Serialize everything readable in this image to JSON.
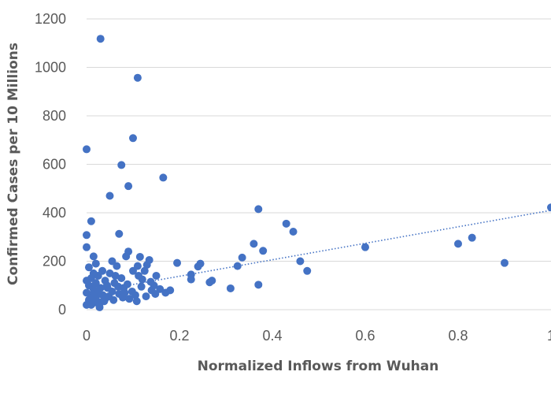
{
  "chart_data": {
    "type": "scatter",
    "title": "",
    "xlabel": "Normalized Inflows from Wuhan",
    "ylabel": "Confirmed Cases per 10 Millions",
    "xlim": [
      0,
      1
    ],
    "ylim": [
      0,
      1200
    ],
    "x_ticks": [
      "0",
      "0.2",
      "0.4",
      "0.6",
      "0.8",
      "1"
    ],
    "y_ticks": [
      "0",
      "200",
      "400",
      "600",
      "800",
      "1000",
      "1200"
    ],
    "grid": "horizontal",
    "legend": "none",
    "trendline": {
      "style": "dotted",
      "type": "linear",
      "x": [
        0,
        1
      ],
      "y": [
        70,
        410
      ]
    },
    "colors": {
      "points": "#4472c4",
      "grid": "#d9d9d9",
      "text": "#595959"
    },
    "series": [
      {
        "points": [
          [
            0.03,
            1118
          ],
          [
            0.11,
            957
          ],
          [
            0.1,
            708
          ],
          [
            0.0,
            662
          ],
          [
            0.075,
            597
          ],
          [
            0.165,
            545
          ],
          [
            0.09,
            510
          ],
          [
            0.05,
            470
          ],
          [
            0.01,
            365
          ],
          [
            0.07,
            313
          ],
          [
            0.0,
            308
          ],
          [
            0.0,
            258
          ],
          [
            0.37,
            415
          ],
          [
            0.43,
            355
          ],
          [
            0.445,
            322
          ],
          [
            0.36,
            272
          ],
          [
            0.38,
            243
          ],
          [
            0.335,
            215
          ],
          [
            0.325,
            180
          ],
          [
            0.46,
            200
          ],
          [
            0.475,
            160
          ],
          [
            0.37,
            103
          ],
          [
            0.31,
            88
          ],
          [
            0.265,
            113
          ],
          [
            0.27,
            120
          ],
          [
            0.245,
            190
          ],
          [
            0.24,
            178
          ],
          [
            0.225,
            145
          ],
          [
            0.225,
            125
          ],
          [
            0.195,
            193
          ],
          [
            0.18,
            80
          ],
          [
            0.17,
            70
          ],
          [
            0.15,
            140
          ],
          [
            0.145,
            100
          ],
          [
            0.14,
            80
          ],
          [
            0.135,
            205
          ],
          [
            0.13,
            185
          ],
          [
            0.125,
            160
          ],
          [
            0.12,
            125
          ],
          [
            0.115,
            218
          ],
          [
            0.11,
            180
          ],
          [
            0.105,
            60
          ],
          [
            0.1,
            160
          ],
          [
            0.09,
            240
          ],
          [
            0.085,
            220
          ],
          [
            0.08,
            90
          ],
          [
            0.075,
            130
          ],
          [
            0.07,
            65
          ],
          [
            0.065,
            180
          ],
          [
            0.06,
            110
          ],
          [
            0.055,
            200
          ],
          [
            0.055,
            75
          ],
          [
            0.05,
            150
          ],
          [
            0.045,
            90
          ],
          [
            0.04,
            45
          ],
          [
            0.04,
            120
          ],
          [
            0.035,
            60
          ],
          [
            0.03,
            90
          ],
          [
            0.03,
            30
          ],
          [
            0.025,
            140
          ],
          [
            0.025,
            75
          ],
          [
            0.02,
            190
          ],
          [
            0.02,
            110
          ],
          [
            0.02,
            50
          ],
          [
            0.015,
            220
          ],
          [
            0.015,
            150
          ],
          [
            0.015,
            85
          ],
          [
            0.01,
            130
          ],
          [
            0.01,
            60
          ],
          [
            0.01,
            20
          ],
          [
            0.005,
            175
          ],
          [
            0.005,
            100
          ],
          [
            0.005,
            40
          ],
          [
            0.0,
            120
          ],
          [
            0.0,
            70
          ],
          [
            0.0,
            20
          ],
          [
            0.018,
            30
          ],
          [
            0.028,
            10
          ],
          [
            0.038,
            35
          ],
          [
            0.048,
            55
          ],
          [
            0.058,
            40
          ],
          [
            0.068,
            95
          ],
          [
            0.078,
            50
          ],
          [
            0.088,
            105
          ],
          [
            0.098,
            75
          ],
          [
            0.108,
            35
          ],
          [
            0.118,
            95
          ],
          [
            0.128,
            55
          ],
          [
            0.138,
            115
          ],
          [
            0.148,
            65
          ],
          [
            0.158,
            85
          ],
          [
            0.034,
            160
          ],
          [
            0.044,
            100
          ],
          [
            0.012,
            95
          ],
          [
            0.022,
            65
          ],
          [
            0.062,
            140
          ],
          [
            0.082,
            70
          ],
          [
            0.092,
            45
          ],
          [
            0.112,
            140
          ],
          [
            0.6,
            258
          ],
          [
            0.8,
            272
          ],
          [
            0.83,
            297
          ],
          [
            0.9,
            193
          ],
          [
            1.0,
            422
          ]
        ]
      }
    ]
  }
}
